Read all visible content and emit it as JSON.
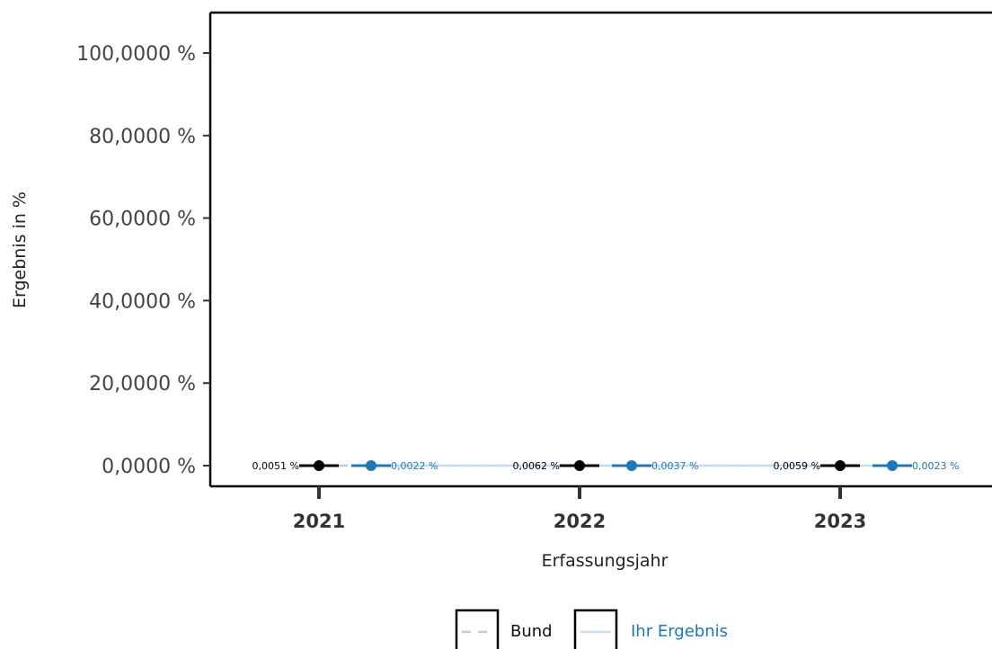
{
  "chart_data": {
    "type": "line",
    "xlabel": "Erfassungsjahr",
    "ylabel": "Ergebnis in %",
    "categories": [
      "2021",
      "2022",
      "2023"
    ],
    "y_ticks": [
      "0,0000 %",
      "20,0000 %",
      "40,0000 %",
      "60,0000 %",
      "80,0000 %",
      "100,0000 %"
    ],
    "ylim": [
      0,
      100
    ],
    "grid": false,
    "legend_position": "bottom",
    "series": [
      {
        "name": "Bund",
        "color": "#000000",
        "line_color": "#c8cbce",
        "line_style": "dashed",
        "values": [
          0.0051,
          0.0062,
          0.0059
        ],
        "labels": [
          "0,0051 %",
          "0,0062 %",
          "0,0059 %"
        ]
      },
      {
        "name": "Ihr  Ergebnis",
        "color": "#1f78b4",
        "line_color": "#c6dcef",
        "line_style": "solid",
        "values": [
          0.0022,
          0.0037,
          0.0023
        ],
        "labels": [
          "0,0022 %",
          "0,0037 %",
          "0,0023 %"
        ]
      }
    ]
  }
}
